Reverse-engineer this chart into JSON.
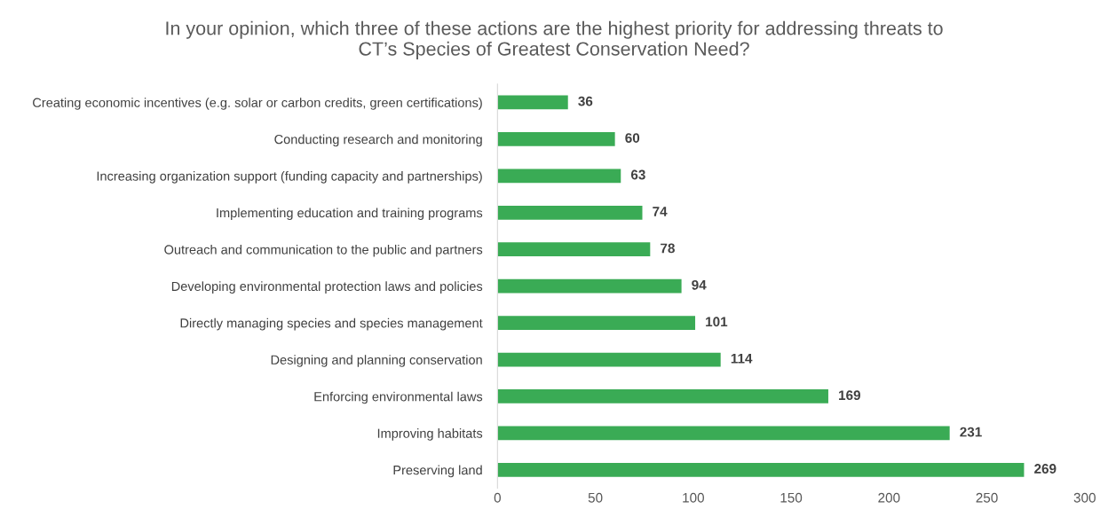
{
  "chart_data": {
    "type": "bar",
    "orientation": "horizontal",
    "title": "In your opinion, which three of these actions are the highest priority for addressing threats to\nCT’s Species of Greatest Conservation Need?",
    "categories": [
      "Creating economic incentives (e.g. solar or carbon credits, green certifications)",
      "Conducting research and monitoring",
      "Increasing organization support (funding capacity and partnerships)",
      "Implementing education and training programs",
      "Outreach and communication to the public and partners",
      "Developing environmental protection laws and policies",
      "Directly managing species and species management",
      "Designing and planning conservation",
      "Enforcing environmental laws",
      "Improving habitats",
      "Preserving land"
    ],
    "values": [
      36,
      60,
      63,
      74,
      78,
      94,
      101,
      114,
      169,
      231,
      269
    ],
    "color": "#3aab55",
    "xlim": [
      0,
      300
    ],
    "xticks": [
      0,
      50,
      100,
      150,
      200,
      250,
      300
    ],
    "data_labels": true,
    "grid": false,
    "legend": false
  }
}
